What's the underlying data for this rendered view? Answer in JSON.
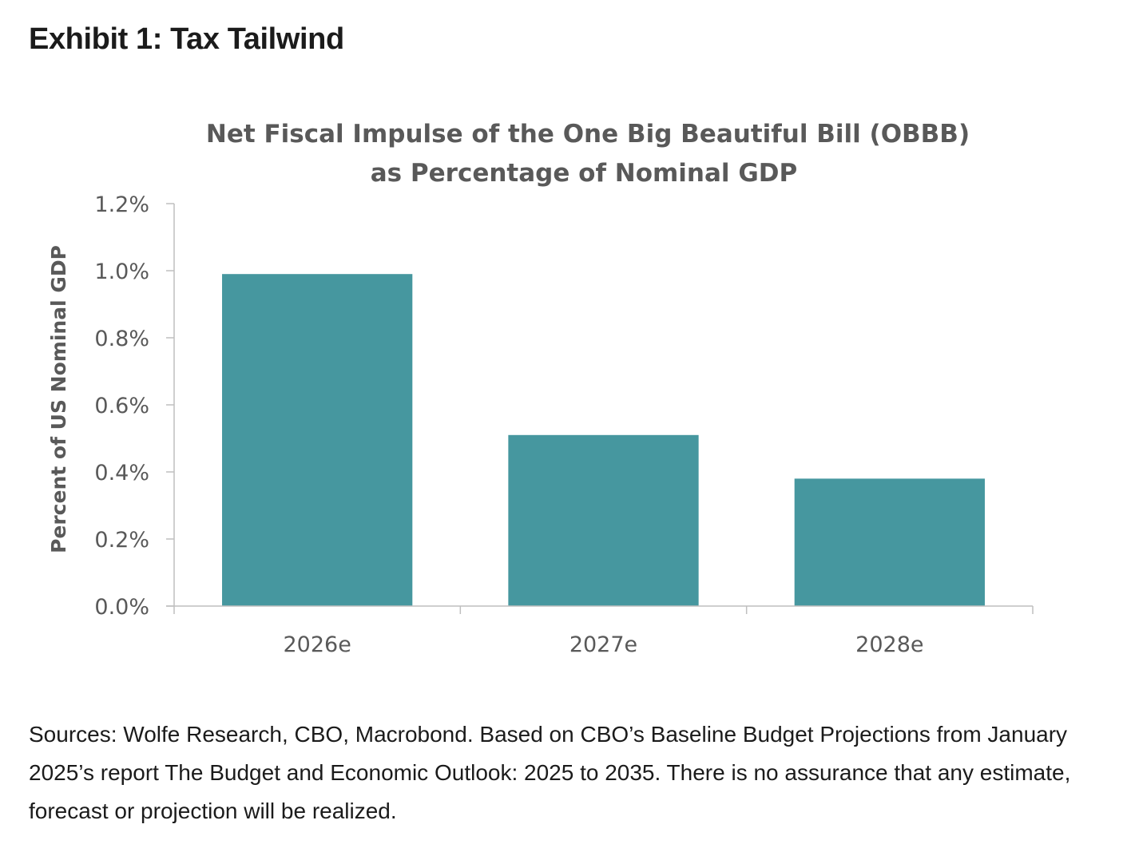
{
  "exhibit": {
    "title": "Exhibit 1: Tax Tailwind"
  },
  "chart_data": {
    "type": "bar",
    "title_lines": [
      "Net Fiscal Impulse of the One Big Beautiful Bill (OBBB)",
      "as Percentage of Nominal GDP"
    ],
    "xlabel": "",
    "ylabel": "Percent of US Nominal GDP",
    "categories": [
      "2026e",
      "2027e",
      "2028e"
    ],
    "values": [
      0.99,
      0.51,
      0.38
    ],
    "ylim": [
      0,
      1.2
    ],
    "yticks": [
      0.0,
      0.2,
      0.4,
      0.6,
      0.8,
      1.0,
      1.2
    ],
    "ytick_labels": [
      "0.0%",
      "0.2%",
      "0.4%",
      "0.6%",
      "0.8%",
      "1.0%",
      "1.2%"
    ],
    "grid": false,
    "legend": "none",
    "colors": {
      "bar": "#46979f",
      "axis": "#bfbfbf",
      "text": "#595959"
    }
  },
  "footnote": {
    "text": "Sources: Wolfe Research, CBO, Macrobond. Based on CBO’s Baseline Budget Projections from January 2025’s report The Budget and Economic Outlook: 2025 to 2035. There is no assurance that any estimate, forecast or projection will be realized."
  }
}
